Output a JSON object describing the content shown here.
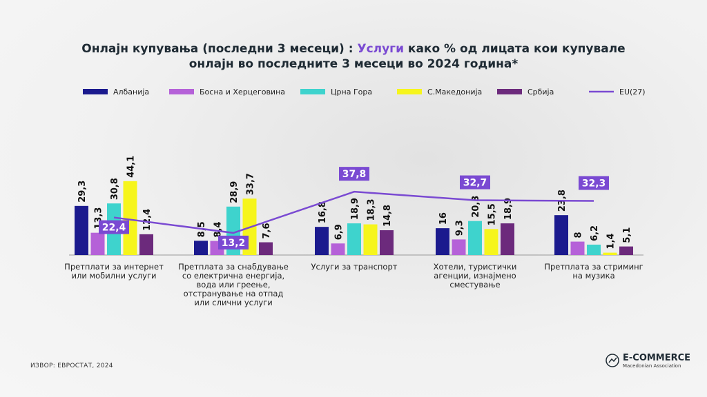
{
  "chart_data": {
    "type": "bar",
    "title_parts": [
      "Онлајн купувања (последни 3 месеци) :",
      "Услуги",
      "како % од лицата кои купувале",
      "онлајн во последните 3 месеци во 2024 година*"
    ],
    "categories": [
      "Претплати за интернет или мобилни услуги",
      "Претплата за снабдување со електрична енергија, вода или греење, отстранување на отпад или слични услуги",
      "Услуги за транспорт",
      "Хотели, туристички агенции, изнајмено сместување",
      "Претплата за стриминг на музика"
    ],
    "series": [
      {
        "name": "Албанија",
        "color": "#1b1a8e",
        "values": [
          29.3,
          8.5,
          16.8,
          16,
          23.8
        ],
        "value_labels": [
          "29,3",
          "8,5",
          "16,8",
          "16",
          "23,8"
        ]
      },
      {
        "name": "Босна и Херцеговина",
        "color": "#b561d8",
        "values": [
          13.3,
          8.4,
          6.9,
          9.3,
          8
        ],
        "value_labels": [
          "13,3",
          "8,4",
          "6,9",
          "9,3",
          "8"
        ]
      },
      {
        "name": "Црна Гора",
        "color": "#3ed3cd",
        "values": [
          30.8,
          28.9,
          18.9,
          20.3,
          6.2
        ],
        "value_labels": [
          "30,8",
          "28,9",
          "18,9",
          "20,3",
          "6,2"
        ]
      },
      {
        "name": "С.Македонија",
        "color": "#f6f51c",
        "values": [
          44.1,
          33.7,
          18.3,
          15.5,
          1.4
        ],
        "value_labels": [
          "44,1",
          "33,7",
          "18,3",
          "15,5",
          "1,4"
        ]
      },
      {
        "name": "Србија",
        "color": "#6c2a7c",
        "values": [
          12.4,
          7.6,
          14.8,
          18.9,
          5.1
        ],
        "value_labels": [
          "12,4",
          "7,6",
          "14,8",
          "18,9",
          "5,1"
        ]
      },
      {
        "name": "EU(27)",
        "type": "line",
        "color": "#7a4ad2",
        "values": [
          22.4,
          13.2,
          37.8,
          32.7,
          32.3
        ],
        "value_labels": [
          "22,4",
          "13,2",
          "37,8",
          "32,7",
          "32,3"
        ]
      }
    ],
    "source": "ИЗВОР: ЕВРОСТАТ, 2024",
    "logo": {
      "name": "E-COMMERCE",
      "subtitle": "Macedonian Association"
    }
  }
}
